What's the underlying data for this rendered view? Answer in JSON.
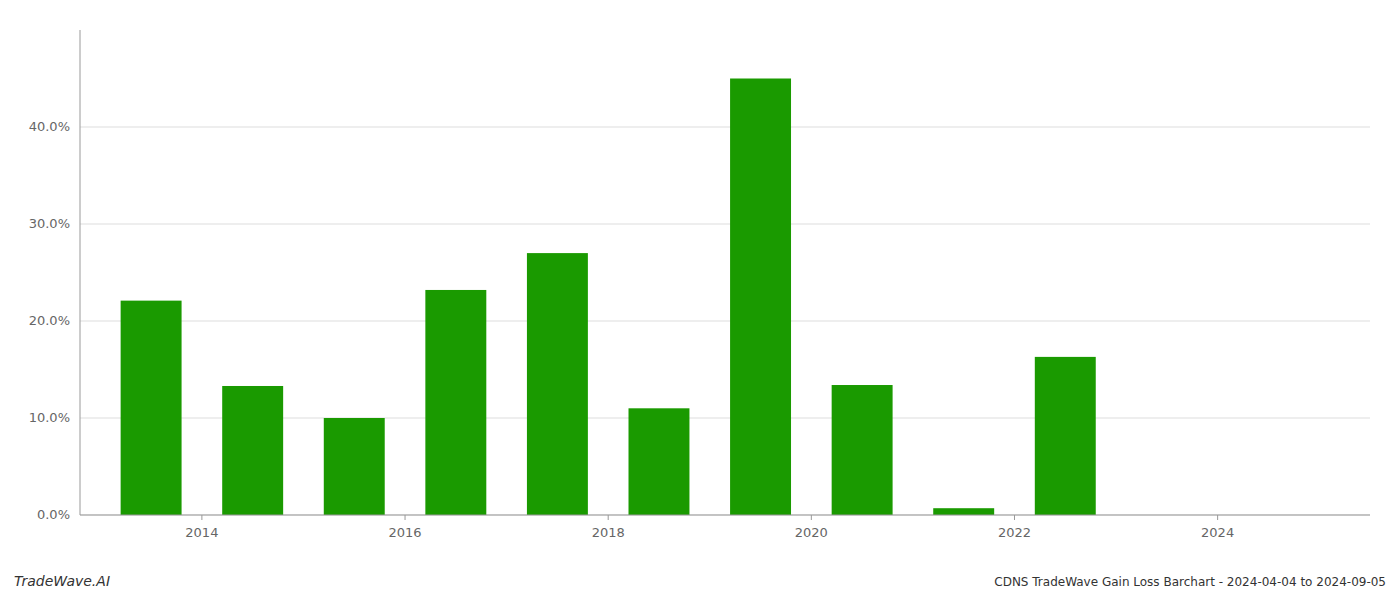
{
  "chart_data": {
    "type": "bar",
    "x": [
      2013,
      2014,
      2015,
      2016,
      2017,
      2018,
      2019,
      2020,
      2021,
      2022,
      2023,
      2024
    ],
    "values": [
      0.221,
      0.133,
      0.1,
      0.232,
      0.27,
      0.11,
      0.45,
      0.134,
      0.007,
      0.163,
      0.0,
      0.0
    ],
    "color": "#1a9a00",
    "xlim": [
      2012.3,
      2025.0
    ],
    "xticks": [
      {
        "value": 2013.5,
        "label": "2014"
      },
      {
        "value": 2015.5,
        "label": "2016"
      },
      {
        "value": 2017.5,
        "label": "2018"
      },
      {
        "value": 2019.5,
        "label": "2020"
      },
      {
        "value": 2021.5,
        "label": "2022"
      },
      {
        "value": 2023.5,
        "label": "2024"
      }
    ],
    "ylim": [
      0,
      0.5
    ],
    "yticks": [
      {
        "value": 0.0,
        "label": "0.0%"
      },
      {
        "value": 0.1,
        "label": "10.0%"
      },
      {
        "value": 0.2,
        "label": "20.0%"
      },
      {
        "value": 0.3,
        "label": "30.0%"
      },
      {
        "value": 0.4,
        "label": "40.0%"
      }
    ],
    "grid": true,
    "annotations": [
      "TradeWave.AI",
      "CDNS TradeWave Gain Loss Barchart - 2024-04-04 to 2024-09-05"
    ]
  }
}
